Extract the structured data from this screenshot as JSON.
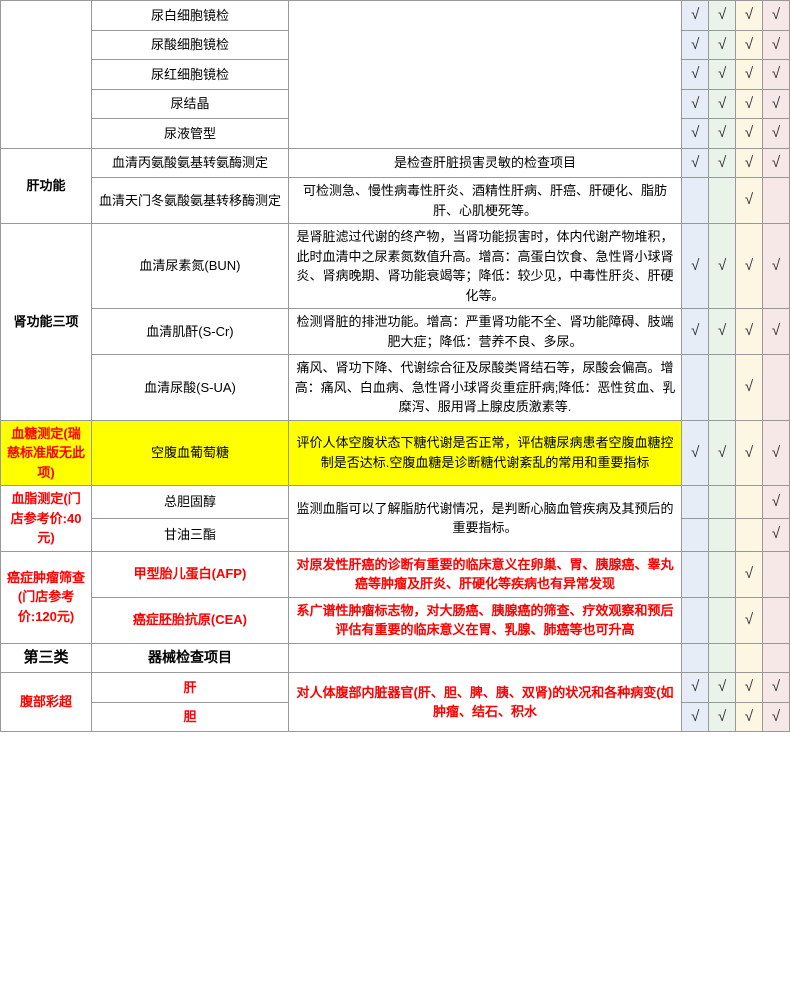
{
  "checkmark": "√",
  "colors": {
    "chk1_bg": "#e6edf7",
    "chk2_bg": "#eaf3ea",
    "chk3_bg": "#fdf6e3",
    "chk4_bg": "#f7e8e8",
    "highlight": "#ffff00",
    "red_text": "#ff0000"
  },
  "urine": {
    "items": [
      "尿白细胞镜检",
      "尿酸细胞镜检",
      "尿红细胞镜检",
      "尿结晶",
      "尿液管型"
    ]
  },
  "liver": {
    "cat": "肝功能",
    "r0_item": "血清丙氨酸氨基转氨酶测定",
    "r0_desc": "是检查肝脏损害灵敏的检查项目",
    "r1_item": "血清天门冬氨酸氨基转移酶测定",
    "r1_desc": "可检测急、慢性病毒性肝炎、酒精性肝病、肝癌、肝硬化、脂肪肝、心肌梗死等。"
  },
  "kidney": {
    "cat": "肾功能三项",
    "r0_item": "血清尿素氮(BUN)",
    "r0_desc": "是肾脏滤过代谢的终产物，当肾功能损害时，体内代谢产物堆积，此时血清中之尿素氮数值升高。增高：高蛋白饮食、急性肾小球肾炎、肾病晚期、肾功能衰竭等；降低：较少见，中毒性肝炎、肝硬化等。",
    "r1_item": "血清肌酐(S-Cr)",
    "r1_desc": "检测肾脏的排泄功能。增高：严重肾功能不全、肾功能障碍、肢端肥大症；降低：营养不良、多尿。",
    "r2_item": "血清尿酸(S-UA)",
    "r2_desc": "痛风、肾功下降、代谢综合征及尿酸类肾结石等，尿酸会偏高。增高：痛风、白血病、急性肾小球肾炎重症肝病;降低：恶性贫血、乳糜泻、服用肾上腺皮质激素等."
  },
  "glucose": {
    "cat": "血糖测定(瑞慈标准版无此项)",
    "item": "空腹血葡萄糖",
    "desc": "评价人体空腹状态下糖代谢是否正常，评估糖尿病患者空腹血糖控制是否达标.空腹血糖是诊断糖代谢紊乱的常用和重要指标"
  },
  "lipid": {
    "cat": "血脂测定(门店参考价:40元)",
    "r0_item": "总胆固醇",
    "r1_item": "甘油三酯",
    "desc": "监测血脂可以了解脂肪代谢情况，是判断心脑血管疾病及其预后的重要指标。"
  },
  "cancer": {
    "cat": "癌症肿瘤筛查(门店参考价:120元)",
    "r0_item": "甲型胎儿蛋白(AFP)",
    "r0_desc": "对原发性肝癌的诊断有重要的临床意义在卵巢、胃、胰腺癌、睾丸癌等肿瘤及肝炎、肝硬化等疾病也有异常发现",
    "r1_item": "癌症胚胎抗原(CEA)",
    "r1_desc": "系广谱性肿瘤标志物，对大肠癌、胰腺癌的筛查、疗效观察和预后评估有重要的临床意义在胃、乳腺、肺癌等也可升高"
  },
  "section3": {
    "cat": "第三类",
    "head": "器械检查项目"
  },
  "ultrasound": {
    "cat": "腹部彩超",
    "r0_item": "肝",
    "r1_item": "胆",
    "desc": "对人体腹部内脏器官(肝、胆、脾、胰、双肾)的状况和各种病变(如肿瘤、结石、积水"
  }
}
